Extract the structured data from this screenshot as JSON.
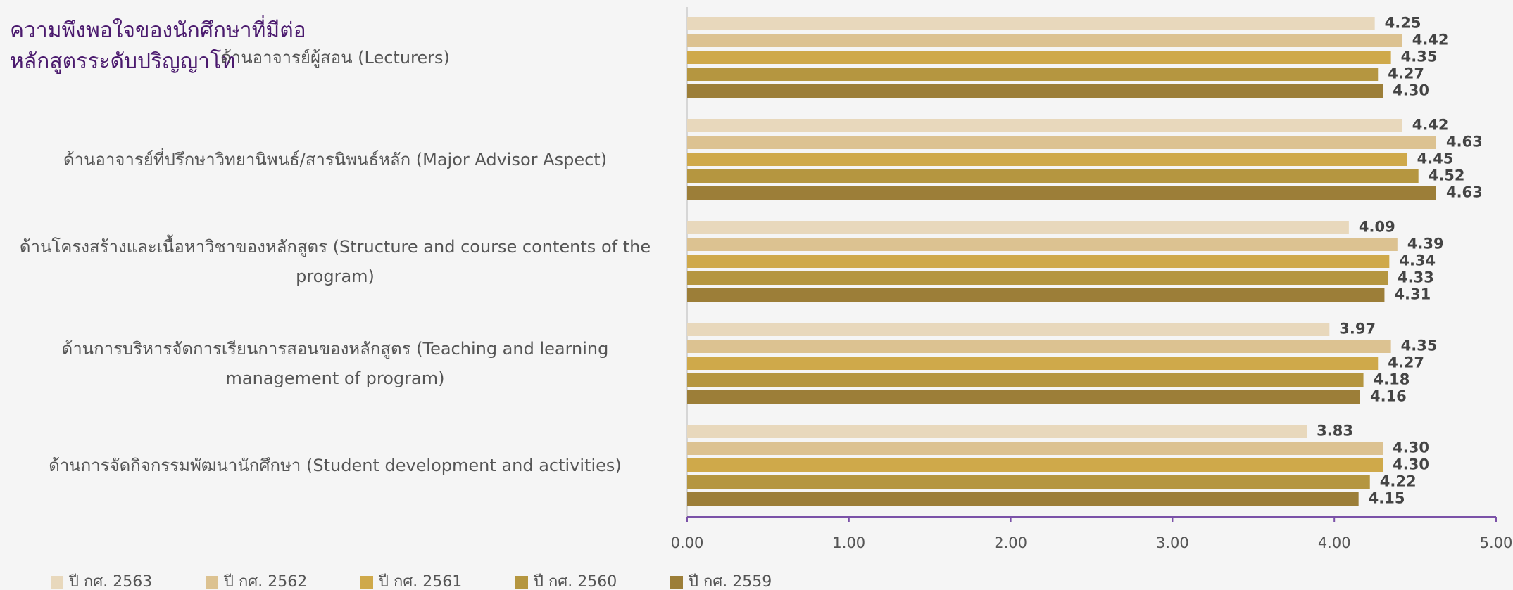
{
  "chart_data": {
    "type": "hbar",
    "title": "ความพึงพอใจของนักศึกษาที่มีต่อหลักสูตรระดับปริญญาโท",
    "categories": [
      "ด้านอาจารย์ผู้สอน (Lecturers)",
      "ด้านอาจารย์ที่ปรึกษาวิทยานิพนธ์/สารนิพนธ์หลัก (Major Advisor Aspect)",
      "ด้านโครงสร้างและเนื้อหาวิชาของหลักสูตร (Structure and course contents of the program)",
      "ด้านการบริหารจัดการเรียนการสอนของหลักสูตร (Teaching and learning management of program)",
      "ด้านการจัดกิจกรรมพัฒนานักศึกษา (Student development and activities)"
    ],
    "series": [
      {
        "name": "ปี กศ. 2563",
        "color": "#e8d8bc",
        "values": [
          4.25,
          4.42,
          4.09,
          3.97,
          3.83
        ],
        "value_labels": [
          "4.25",
          "4.42",
          "4.09",
          "3.97",
          "3.83"
        ]
      },
      {
        "name": "ปี กศ. 2562",
        "color": "#dcc291",
        "values": [
          4.42,
          4.63,
          4.39,
          4.35,
          4.3
        ],
        "value_labels": [
          "4.42",
          "4.63",
          "4.39",
          "4.35",
          "4.30"
        ]
      },
      {
        "name": "ปี กศ. 2561",
        "color": "#cfa94a",
        "values": [
          4.35,
          4.45,
          4.34,
          4.27,
          4.3
        ],
        "value_labels": [
          "4.35",
          "4.45",
          "4.34",
          "4.27",
          "4.30"
        ]
      },
      {
        "name": "ปี กศ. 2560",
        "color": "#b59640",
        "values": [
          4.27,
          4.52,
          4.33,
          4.18,
          4.22
        ],
        "value_labels": [
          "4.27",
          "4.52",
          "4.33",
          "4.18",
          "4.22"
        ]
      },
      {
        "name": "ปี กศ. 2559",
        "color": "#9c7e38",
        "values": [
          4.3,
          4.63,
          4.31,
          4.16,
          4.15
        ],
        "value_labels": [
          "4.30",
          "4.63",
          "4.31",
          "4.16",
          "4.15"
        ]
      }
    ],
    "xlim": [
      0,
      5
    ],
    "xticks": [
      {
        "value": 0,
        "label": "0.00"
      },
      {
        "value": 1,
        "label": "1.00"
      },
      {
        "value": 2,
        "label": "2.00"
      },
      {
        "value": 3,
        "label": "3.00"
      },
      {
        "value": 4,
        "label": "4.00"
      },
      {
        "value": 5,
        "label": "5.00"
      }
    ],
    "legend": "bottom"
  }
}
